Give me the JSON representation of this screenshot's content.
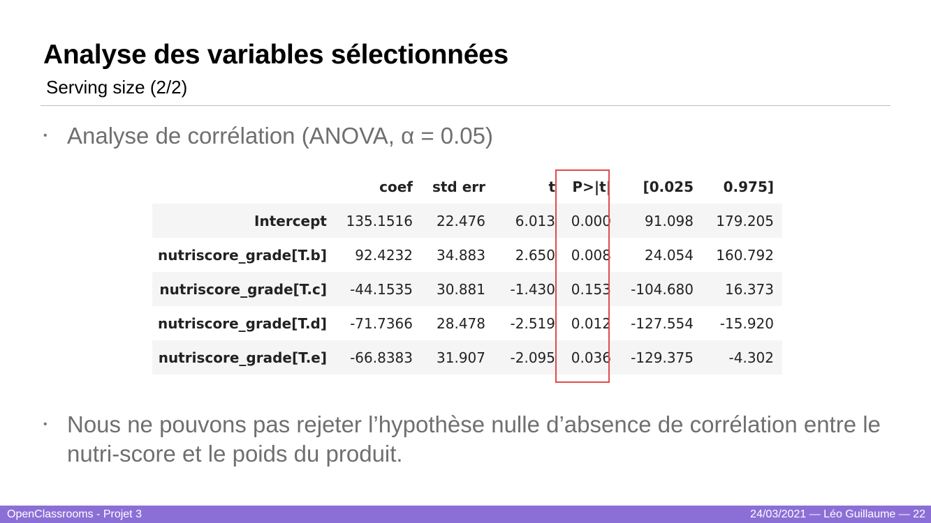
{
  "slide": {
    "title": "Analyse des variables sélectionnées",
    "subtitle": "Serving size (2/2)",
    "bullet1": "Analyse de corrélation (ANOVA, α = 0.05)",
    "bullet2": "Nous ne pouvons pas rejeter l’hypothèse nulle d’absence de corrélation entre le nutri-score et le poids du produit.",
    "bullet_glyph": "•"
  },
  "table": {
    "headers": [
      "",
      "coef",
      "std err",
      "t",
      "P>|t|",
      "[0.025",
      "0.975]"
    ],
    "rows": [
      [
        "Intercept",
        "135.1516",
        "22.476",
        "6.013",
        "0.000",
        "91.098",
        "179.205"
      ],
      [
        "nutriscore_grade[T.b]",
        "92.4232",
        "34.883",
        "2.650",
        "0.008",
        "24.054",
        "160.792"
      ],
      [
        "nutriscore_grade[T.c]",
        "-44.1535",
        "30.881",
        "-1.430",
        "0.153",
        "-104.680",
        "16.373"
      ],
      [
        "nutriscore_grade[T.d]",
        "-71.7366",
        "28.478",
        "-2.519",
        "0.012",
        "-127.554",
        "-15.920"
      ],
      [
        "nutriscore_grade[T.e]",
        "-66.8383",
        "31.907",
        "-2.095",
        "0.036",
        "-129.375",
        "-4.302"
      ]
    ],
    "highlight_color": "#e04a4a"
  },
  "footer": {
    "left": "OpenClassrooms - Projet 3",
    "right": "24/03/2021  — Léo Guillaume —   22",
    "bg_color": "#8c6fd6"
  }
}
